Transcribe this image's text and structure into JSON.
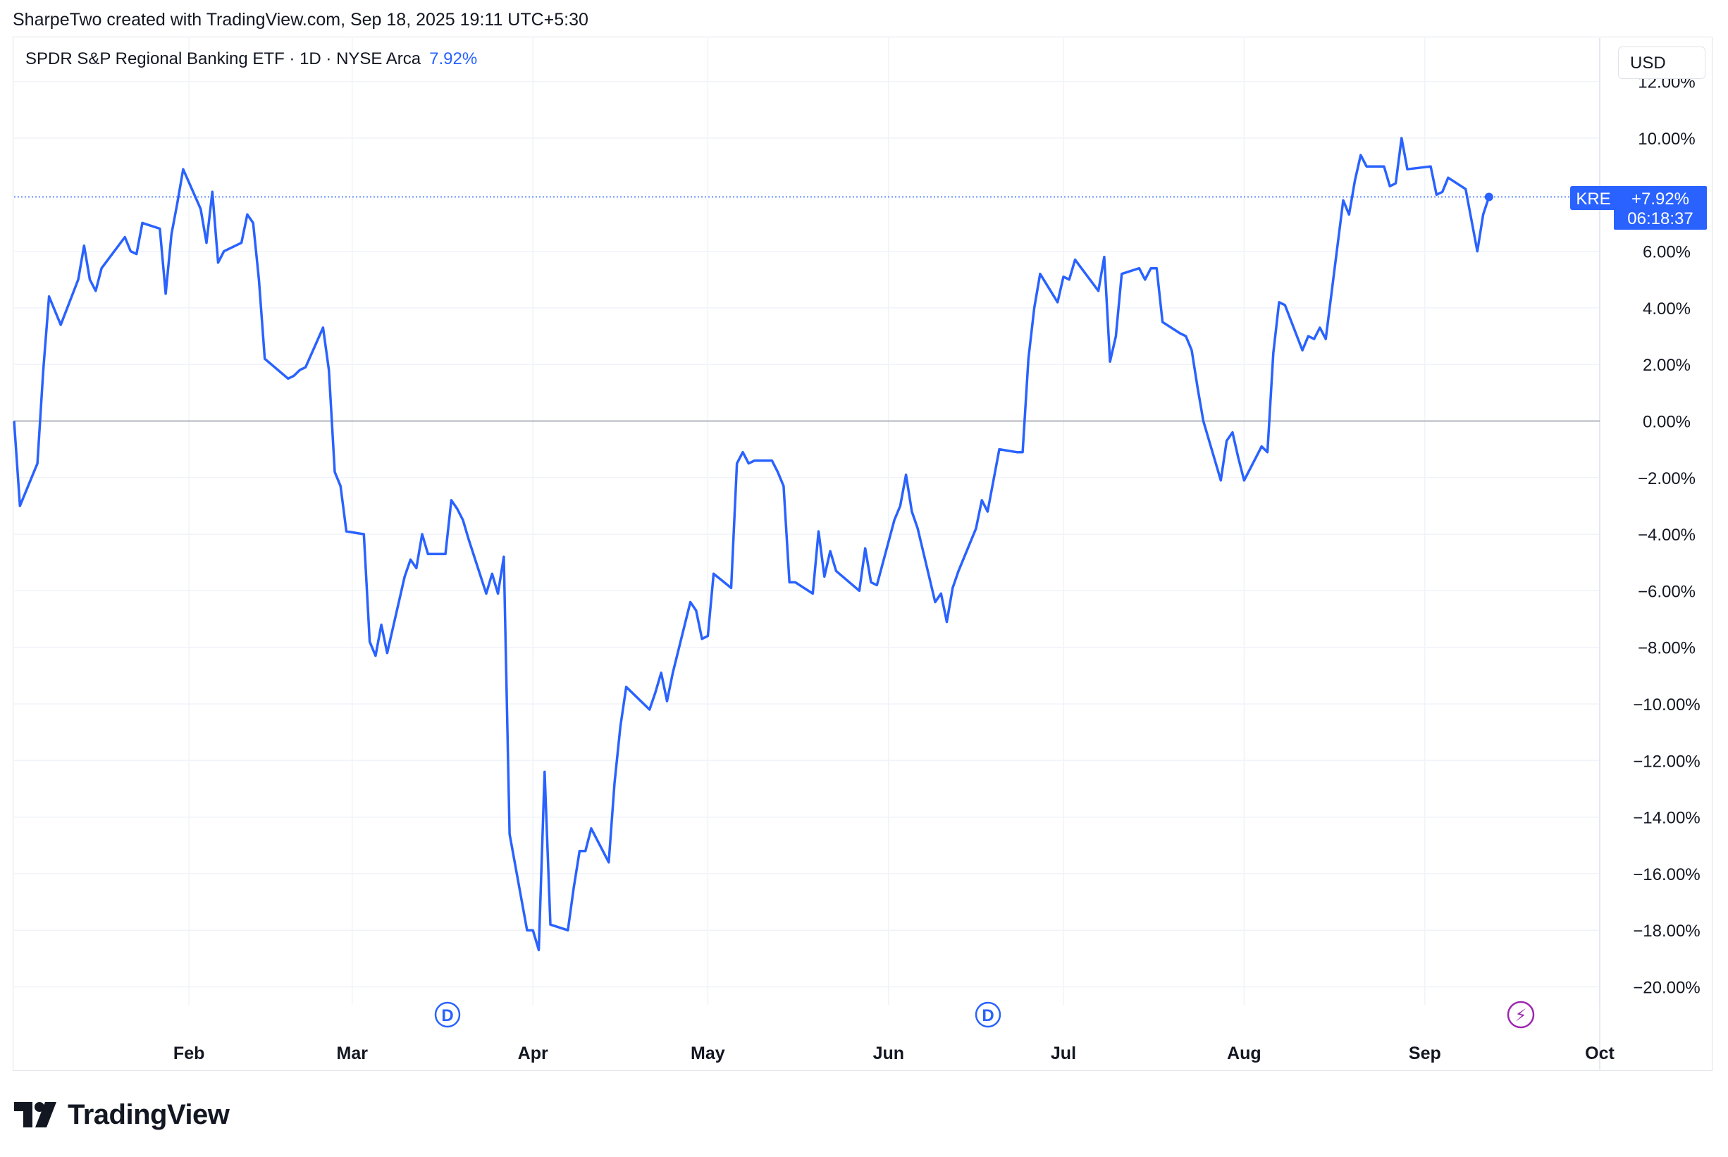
{
  "header": {
    "text": "SharpeTwo created with TradingView.com, Sep 18, 2025 19:11 UTC+5:30"
  },
  "legend": {
    "title": "SPDR S&P Regional Banking ETF · 1D · NYSE Arca",
    "change": "7.92%"
  },
  "currency": "USD",
  "price_label": {
    "symbol": "KRE",
    "value": "+7.92%",
    "countdown": "06:18:37"
  },
  "markers": [
    {
      "letter": "D",
      "type": "dividend"
    },
    {
      "letter": "D",
      "type": "dividend"
    },
    {
      "letter": "⚡",
      "type": "event"
    }
  ],
  "brand": "TradingView",
  "colors": {
    "line": "#2962ff",
    "grid": "#f0f3fa",
    "zero": "#9598a1",
    "event": "#9c27b0"
  },
  "chart_data": {
    "type": "line",
    "series": [
      {
        "name": "",
        "x_start": "2025-01-02",
        "values": [
          0.0,
          -3.0,
          -1.5,
          1.8,
          4.4,
          3.4,
          5.0,
          6.2,
          5.0,
          4.6,
          5.4,
          6.5,
          6.0,
          5.9,
          7.0,
          6.8,
          4.5,
          6.6,
          7.7,
          8.9,
          7.5,
          6.3,
          8.1,
          5.6,
          6.0,
          6.3,
          7.3,
          7.0,
          5.0,
          2.2,
          1.5,
          1.6,
          1.8,
          1.9,
          3.3,
          1.8,
          -1.8,
          -2.3,
          -3.9,
          -4.0,
          -7.8,
          -8.3,
          -7.2,
          -8.2,
          -5.5,
          -4.9,
          -5.2,
          -4.0,
          -4.7,
          -4.7,
          -2.8,
          -3.1,
          -3.5,
          -4.2,
          -6.1,
          -5.4,
          -6.1,
          -4.8,
          -14.6,
          -18.0,
          -18.0,
          -18.7,
          -12.4,
          -17.8,
          -18.0,
          -16.5,
          -15.2,
          -15.2,
          -14.4,
          -15.6,
          -12.8,
          -10.8,
          -9.4,
          -10.2,
          -9.6,
          -8.9,
          -9.9,
          -8.9,
          -6.4,
          -6.7,
          -7.7,
          -7.6,
          -5.4,
          -5.9,
          -1.5,
          -1.1,
          -1.5,
          -1.4,
          -1.4,
          -1.8,
          -2.3,
          -5.7,
          -5.7,
          -6.1,
          -3.9,
          -5.5,
          -4.6,
          -5.3,
          -6.0,
          -4.5,
          -5.7,
          -5.8,
          -3.5,
          -3.0,
          -1.9,
          -3.2,
          -3.8,
          -6.4,
          -6.1,
          -7.1,
          -5.9,
          -5.3,
          -3.8,
          -2.8,
          -3.2,
          -1.0,
          -1.1,
          -1.1,
          2.2,
          4.0,
          5.2,
          4.2,
          5.1,
          5.0,
          5.7,
          4.6,
          5.8,
          2.1,
          3.0,
          5.2,
          5.4,
          5.0,
          5.4,
          5.4,
          3.5,
          3.1,
          3.0,
          2.5,
          1.2,
          0.0,
          -2.1,
          -0.7,
          -0.4,
          -1.3,
          -2.1,
          -0.9,
          -1.1,
          2.4,
          4.2,
          4.1,
          2.5,
          3.0,
          2.9,
          3.3,
          2.9,
          7.8,
          7.3,
          8.5,
          9.4,
          9.0,
          9.0,
          8.3,
          8.4,
          10.0,
          8.9,
          9.0,
          8.0,
          8.1,
          8.6,
          8.2,
          7.1,
          6.0,
          7.3,
          7.92
        ],
        "color": "#2962ff"
      }
    ],
    "x_ticks": [
      "Feb",
      "Mar",
      "Apr",
      "May",
      "Jun",
      "Jul",
      "Aug",
      "Sep",
      "Oct"
    ],
    "y_ticks": [
      "12.00%",
      "10.00%",
      "6.00%",
      "4.00%",
      "2.00%",
      "0.00%",
      "−2.00%",
      "−4.00%",
      "−6.00%",
      "−8.00%",
      "−10.00%",
      "−12.00%",
      "−14.00%",
      "−16.00%",
      "−18.00%",
      "−20.00%"
    ],
    "ylim": [
      -20.5,
      12.5
    ],
    "last_value": 7.92,
    "grid": true
  }
}
